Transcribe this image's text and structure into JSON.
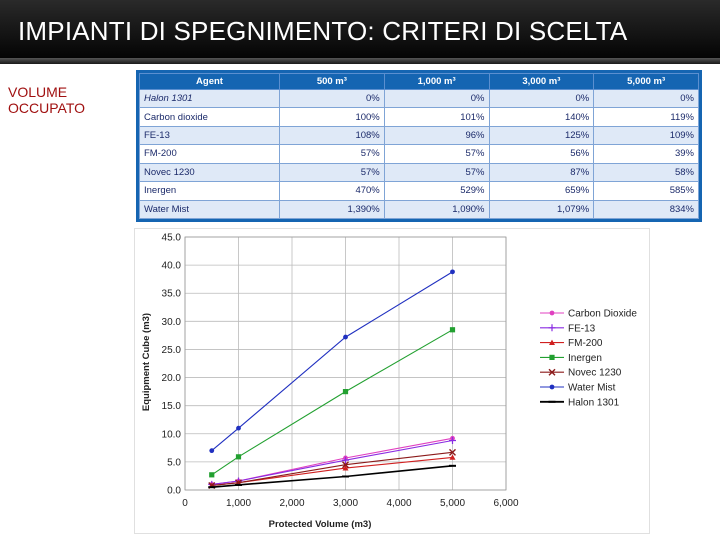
{
  "slide": {
    "title": "IMPIANTI DI SPEGNIMENTO: CRITERI DI SCELTA",
    "side_label_line1": "VOLUME",
    "side_label_line2": "OCCUPATO"
  },
  "table": {
    "headers": [
      "Agent",
      "500 m³",
      "1,000 m³",
      "3,000 m³",
      "5,000 m³"
    ],
    "rows": [
      {
        "agent": "Halon 1301",
        "italic": true,
        "values": [
          "0%",
          "0%",
          "0%",
          "0%"
        ]
      },
      {
        "agent": "Carbon dioxide",
        "values": [
          "100%",
          "101%",
          "140%",
          "119%"
        ]
      },
      {
        "agent": "FE-13",
        "values": [
          "108%",
          "96%",
          "125%",
          "109%"
        ]
      },
      {
        "agent": "FM-200",
        "values": [
          "57%",
          "57%",
          "56%",
          "39%"
        ]
      },
      {
        "agent": "Novec 1230",
        "values": [
          "57%",
          "57%",
          "87%",
          "58%"
        ]
      },
      {
        "agent": "Inergen",
        "values": [
          "470%",
          "529%",
          "659%",
          "585%"
        ]
      },
      {
        "agent": "Water Mist",
        "values": [
          "1,390%",
          "1,090%",
          "1,079%",
          "834%"
        ]
      }
    ]
  },
  "chart_data": {
    "type": "line",
    "xlabel": "Protected Volume (m3)",
    "ylabel": "Equipment Cube (m3)",
    "xlim": [
      0,
      6000
    ],
    "ylim": [
      0,
      45
    ],
    "xticks": [
      0,
      1000,
      2000,
      3000,
      4000,
      5000,
      6000
    ],
    "xtick_labels": [
      "0",
      "1,000",
      "2,000",
      "3,000",
      "4,000",
      "5,000",
      "6,000"
    ],
    "yticks": [
      0,
      5,
      10,
      15,
      20,
      25,
      30,
      35,
      40,
      45
    ],
    "ytick_labels": [
      "0.0",
      "5.0",
      "10.0",
      "15.0",
      "20.0",
      "25.0",
      "30.0",
      "35.0",
      "40.0",
      "45.0"
    ],
    "grid": true,
    "legend_position": "right",
    "x": [
      500,
      1000,
      3000,
      5000
    ],
    "series": [
      {
        "name": "Carbon Dioxide",
        "color": "#e040c0",
        "marker": "dot",
        "values": [
          1.0,
          1.6,
          5.7,
          9.2
        ]
      },
      {
        "name": "FE-13",
        "color": "#8a2be2",
        "marker": "plus",
        "values": [
          1.0,
          1.6,
          5.3,
          8.8
        ]
      },
      {
        "name": "FM-200",
        "color": "#d02020",
        "marker": "triangle",
        "values": [
          0.8,
          1.3,
          3.9,
          5.8
        ]
      },
      {
        "name": "Inergen",
        "color": "#22a030",
        "marker": "square",
        "values": [
          2.7,
          5.9,
          17.5,
          28.5
        ]
      },
      {
        "name": "Novec 1230",
        "color": "#8b1a1a",
        "marker": "x",
        "values": [
          0.8,
          1.3,
          4.5,
          6.7
        ]
      },
      {
        "name": "Water Mist",
        "color": "#2030c0",
        "marker": "dot",
        "values": [
          7.0,
          11.0,
          27.2,
          38.8
        ]
      },
      {
        "name": "Halon 1301",
        "color": "#000000",
        "marker": "dash",
        "values": [
          0.5,
          0.9,
          2.4,
          4.3
        ]
      }
    ]
  }
}
